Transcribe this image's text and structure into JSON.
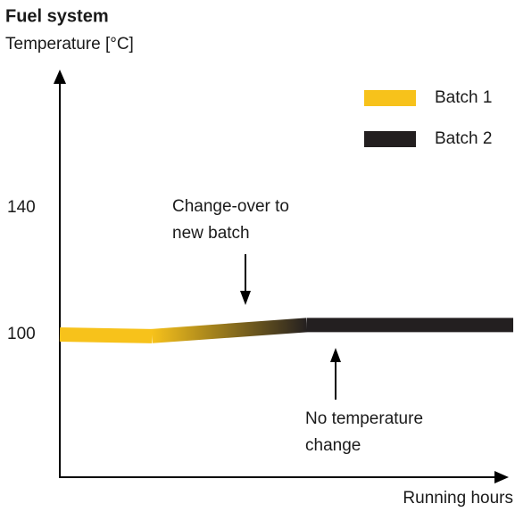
{
  "chart_data": {
    "type": "line",
    "title": "Fuel system",
    "y_label": "Temperature [°C]",
    "x_label": "Running hours",
    "xlim": [
      0,
      100
    ],
    "ylim": [
      55,
      183
    ],
    "yticks": [
      100,
      140
    ],
    "grid": false,
    "legend": "top-right",
    "series": [
      {
        "name": "Batch 1",
        "color": "#f7c21b",
        "x": [
          0,
          20.5
        ],
        "values": [
          100,
          99.5
        ]
      },
      {
        "name": "Batch 2",
        "color": "#231f20",
        "x": [
          55,
          101
        ],
        "values": [
          103,
          103
        ]
      }
    ],
    "annotations": [
      {
        "lines": [
          "Change-over to",
          "new batch"
        ]
      },
      {
        "lines": [
          "No temperature",
          "change"
        ]
      }
    ]
  }
}
